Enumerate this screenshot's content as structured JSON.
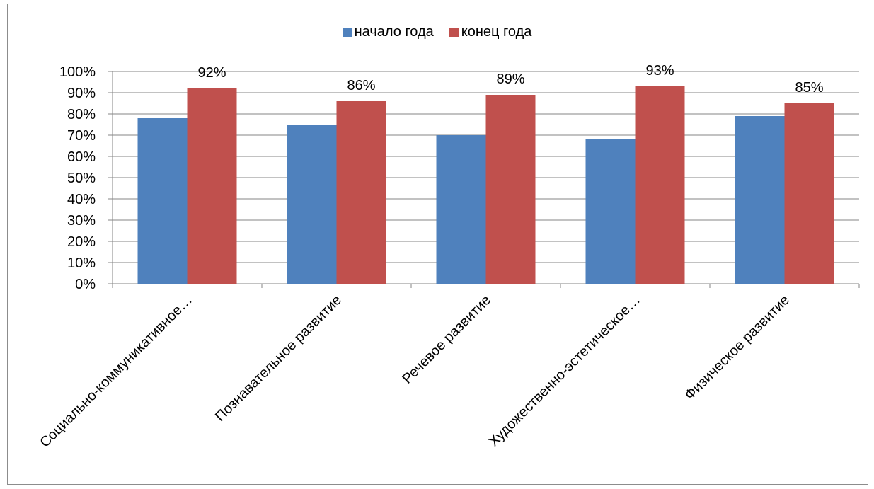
{
  "chart_data": {
    "type": "bar",
    "title": "",
    "categories": [
      "Социально-коммуникативное…",
      "Познавательное развитие",
      "Речевое развитие",
      "Художественно-эстетическое…",
      "Физическое развитие"
    ],
    "series": [
      {
        "name": "начало года",
        "color": "#4f81bd",
        "values": [
          78,
          75,
          70,
          68,
          79
        ]
      },
      {
        "name": "конец года",
        "color": "#c0504d",
        "values": [
          92,
          86,
          89,
          93,
          85
        ]
      }
    ],
    "data_labels": [
      "92%",
      "86%",
      "89%",
      "93%",
      "85%"
    ],
    "data_labels_series": "конец года",
    "y_ticks": [
      "0%",
      "10%",
      "20%",
      "30%",
      "40%",
      "50%",
      "60%",
      "70%",
      "80%",
      "90%",
      "100%"
    ],
    "ylim": [
      0,
      100
    ],
    "y_unit": "%",
    "grid": true,
    "legend_position": "top"
  }
}
